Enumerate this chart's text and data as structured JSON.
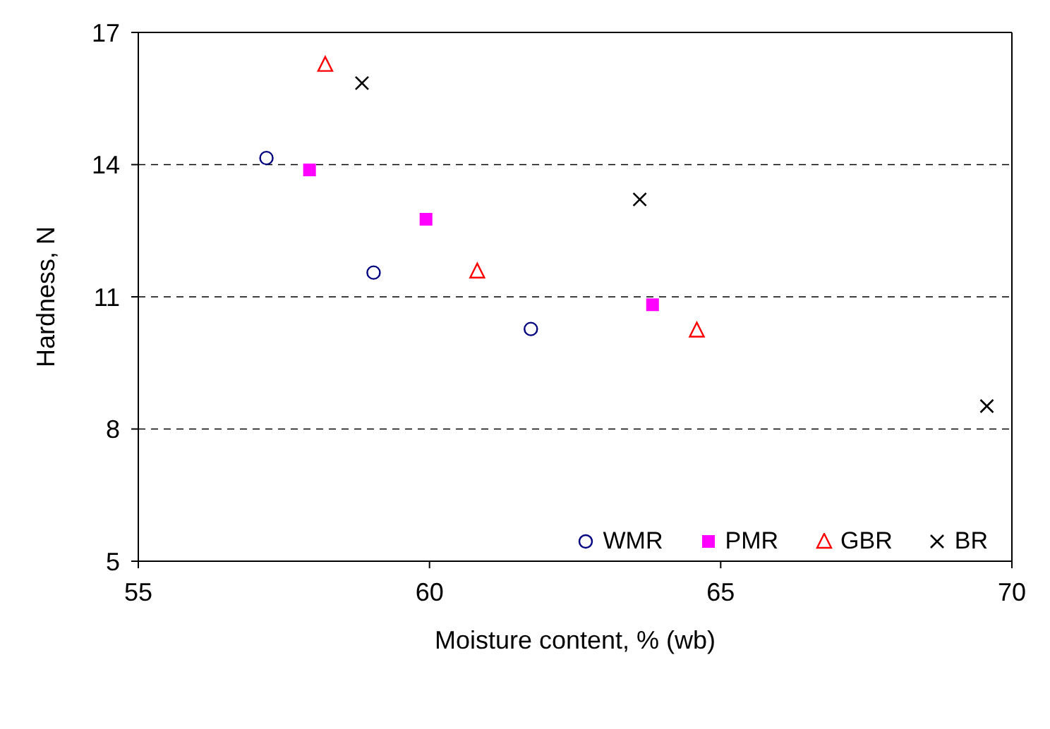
{
  "chart_data": {
    "type": "scatter",
    "xlabel": "Moisture content, % (wb)",
    "ylabel": "Hardness, N",
    "xlim": [
      55,
      70
    ],
    "xticks": [
      55,
      60,
      65,
      70
    ],
    "ylim": [
      5,
      17
    ],
    "yticks": [
      5,
      8,
      11,
      14,
      17
    ],
    "grid": "y",
    "legend": "bottom right",
    "series": [
      {
        "name": "WMR",
        "color": "#000080",
        "marker": "circle",
        "x": [
          57.2,
          59.04,
          61.74
        ],
        "values": [
          14.15,
          11.55,
          10.27
        ]
      },
      {
        "name": "PMR",
        "color": "#ff00ff",
        "marker": "square",
        "x": [
          57.94,
          59.94,
          63.83
        ],
        "values": [
          13.88,
          12.76,
          10.82
        ]
      },
      {
        "name": "GBR",
        "color": "#ff0000",
        "marker": "triangle",
        "x": [
          58.21,
          60.82,
          64.59
        ],
        "values": [
          16.27,
          11.58,
          10.24
        ]
      },
      {
        "name": "BR",
        "color": "#000000",
        "marker": "cross",
        "x": [
          58.84,
          63.61,
          69.57
        ],
        "values": [
          15.85,
          13.21,
          8.52
        ]
      }
    ]
  }
}
